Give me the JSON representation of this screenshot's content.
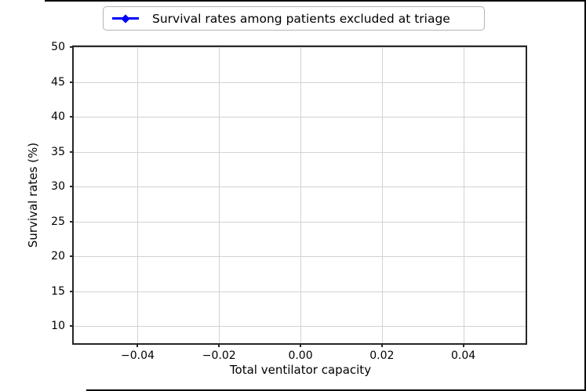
{
  "figure": {
    "background_color": "#ffffff",
    "frame_color": "#000000",
    "spine_color": "#262626",
    "grid_color": "#d3d3d3"
  },
  "chart_data": {
    "type": "line",
    "title": "",
    "xlabel": "Total ventilator capacity",
    "ylabel": "Survival rates (%)",
    "xlim": [
      -0.0557,
      0.0553
    ],
    "ylim": [
      7.56,
      50
    ],
    "x_ticks": [
      -0.04,
      -0.02,
      0.0,
      0.02,
      0.04
    ],
    "x_tick_labels": [
      "−0.04",
      "−0.02",
      "0.00",
      "0.02",
      "0.04"
    ],
    "y_ticks": [
      50,
      45,
      40,
      35,
      30,
      25,
      20,
      15,
      10
    ],
    "y_tick_labels": [
      "50",
      "45",
      "40",
      "35",
      "30",
      "25",
      "20",
      "15",
      "10"
    ],
    "grid": true,
    "legend": {
      "position": "above axes, upper center",
      "entries": [
        {
          "label": "Survival rates among patients excluded at triage",
          "color": "#0000ff",
          "marker": "diamond",
          "line": true
        }
      ]
    },
    "series": [
      {
        "name": "Survival rates among patients excluded at triage",
        "color": "#0000ff",
        "x": [],
        "y": []
      }
    ]
  }
}
